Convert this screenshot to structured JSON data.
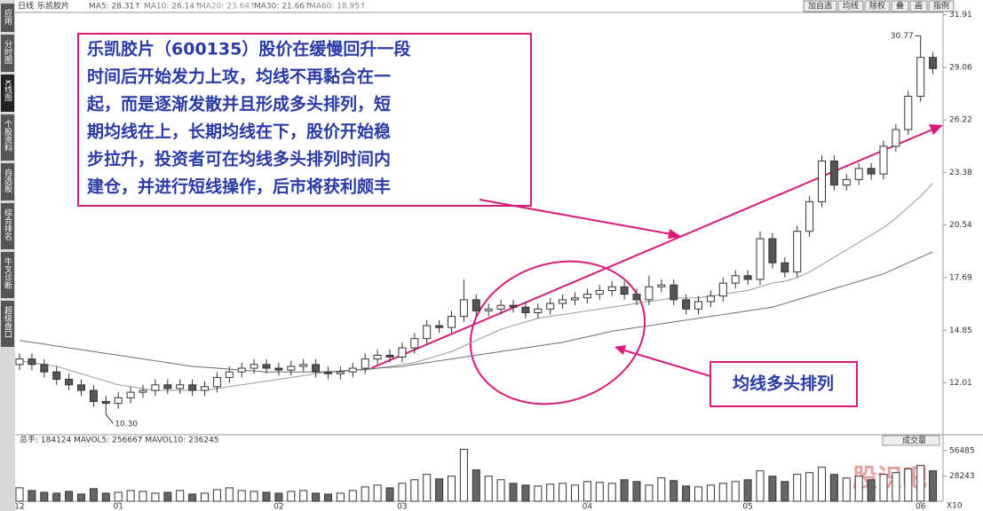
{
  "toolbar": {
    "period": "日线",
    "stock": "乐凯胶片",
    "ma_legend": [
      {
        "text": "MA5: 28.31↑",
        "color": "#555555"
      },
      {
        "text": "MA10: 26.14↑",
        "color": "#777777"
      },
      {
        "text": "MA20: 23.64↑",
        "color": "#999999"
      },
      {
        "text": "MA30: 21.66↑",
        "color": "#666666"
      },
      {
        "text": "MA60: 18.95↑",
        "color": "#888888"
      }
    ],
    "buttons": [
      "加自选",
      "均线",
      "除权",
      "叠",
      "画",
      "指例"
    ],
    "side_tabs": [
      "应用",
      "分时图",
      "K线图",
      "个股资料",
      "自选股",
      "综合排名",
      "牛叉诊断",
      "超级盘口"
    ],
    "volume_header": "总手: 184124   MAVOL5: 256667   MAVOL10: 236245",
    "volume_selector": "成交量",
    "unit": "X10",
    "watermark": "股识吧"
  },
  "annotations": {
    "lines": [
      "乐凯胶片（600135）股价在缓慢回升一段",
      "时间后开始发力上攻，均线不再黏合在一",
      "起，而是逐渐发散并且形成多头排列，短",
      "期均线在上，长期均线在下，股价开始稳",
      "步拉升，投资者可在均线多头排列时间内",
      "建仓，并进行短线操作，后市将获利颇丰"
    ],
    "callout": "均线多头排列"
  },
  "chart_data": [
    {
      "type": "candlestick",
      "categories": [
        "12",
        null,
        null,
        null,
        null,
        null,
        null,
        null,
        "01",
        null,
        null,
        null,
        null,
        null,
        null,
        null,
        null,
        null,
        null,
        null,
        null,
        "02",
        null,
        null,
        null,
        null,
        null,
        null,
        null,
        null,
        null,
        "03",
        null,
        null,
        null,
        null,
        null,
        null,
        null,
        null,
        null,
        null,
        null,
        null,
        null,
        null,
        "04",
        null,
        null,
        null,
        null,
        null,
        null,
        null,
        null,
        null,
        null,
        null,
        null,
        "05",
        null,
        null,
        null,
        null,
        null,
        null,
        null,
        null,
        null,
        null,
        null,
        null,
        null,
        "06",
        null
      ],
      "open": [
        13.0,
        13.3,
        13.0,
        12.6,
        12.2,
        11.9,
        11.6,
        11.0,
        10.9,
        11.2,
        11.5,
        11.6,
        11.9,
        11.7,
        11.9,
        11.6,
        11.8,
        12.3,
        12.6,
        12.8,
        13.0,
        12.8,
        12.7,
        12.9,
        13.0,
        12.6,
        12.5,
        12.6,
        12.8,
        13.3,
        13.5,
        13.4,
        13.9,
        14.4,
        15.1,
        15.0,
        15.6,
        16.5,
        15.9,
        16.0,
        16.2,
        16.1,
        15.8,
        16.0,
        16.3,
        16.5,
        16.6,
        16.8,
        17.0,
        17.2,
        16.8,
        16.5,
        17.2,
        17.3,
        16.5,
        16.0,
        16.4,
        16.7,
        17.4,
        17.8,
        17.6,
        19.8,
        18.5,
        18.0,
        20.2,
        21.8,
        24.0,
        22.7,
        23.0,
        23.6,
        23.3,
        24.8,
        25.7,
        27.5,
        29.6
      ],
      "close": [
        13.3,
        13.0,
        12.6,
        12.2,
        11.9,
        11.6,
        11.0,
        10.9,
        11.2,
        11.5,
        11.6,
        11.9,
        11.7,
        11.9,
        11.6,
        11.8,
        12.3,
        12.6,
        12.8,
        13.0,
        12.8,
        12.7,
        12.9,
        13.0,
        12.6,
        12.5,
        12.6,
        12.8,
        13.3,
        13.5,
        13.4,
        13.9,
        14.4,
        15.1,
        15.0,
        15.6,
        16.5,
        15.9,
        16.0,
        16.2,
        16.1,
        15.8,
        16.0,
        16.3,
        16.5,
        16.6,
        16.8,
        17.0,
        17.2,
        16.8,
        16.5,
        17.2,
        17.3,
        16.5,
        16.0,
        16.4,
        16.7,
        17.4,
        17.8,
        17.6,
        19.8,
        18.5,
        18.0,
        20.2,
        21.8,
        24.0,
        22.7,
        23.0,
        23.6,
        23.3,
        24.8,
        25.7,
        27.5,
        29.6,
        29.0
      ],
      "high": [
        13.6,
        13.6,
        13.3,
        12.9,
        12.5,
        12.2,
        11.9,
        11.3,
        11.5,
        11.8,
        11.9,
        12.2,
        12.2,
        12.2,
        12.2,
        12.1,
        12.6,
        12.9,
        13.1,
        13.3,
        13.3,
        13.1,
        13.2,
        13.3,
        13.3,
        12.9,
        12.9,
        13.1,
        13.6,
        13.8,
        13.8,
        14.2,
        14.7,
        15.4,
        15.4,
        15.9,
        17.6,
        16.8,
        16.3,
        16.5,
        16.5,
        16.4,
        16.3,
        16.6,
        16.8,
        16.9,
        17.1,
        17.3,
        17.5,
        17.5,
        17.1,
        17.8,
        17.6,
        17.6,
        16.8,
        16.7,
        17.0,
        17.7,
        18.1,
        18.1,
        20.2,
        20.1,
        18.8,
        20.5,
        22.1,
        24.3,
        24.3,
        23.3,
        23.9,
        23.9,
        25.1,
        26.0,
        27.8,
        30.77,
        29.9
      ],
      "low": [
        12.7,
        12.7,
        12.3,
        11.9,
        11.6,
        11.3,
        10.7,
        10.3,
        10.6,
        10.9,
        11.2,
        11.3,
        11.4,
        11.4,
        11.3,
        11.3,
        11.5,
        12.0,
        12.3,
        12.5,
        12.5,
        12.4,
        12.4,
        12.6,
        12.3,
        12.2,
        12.2,
        12.3,
        12.5,
        13.0,
        13.1,
        13.1,
        13.6,
        14.1,
        14.7,
        14.7,
        15.3,
        15.6,
        15.6,
        15.7,
        15.8,
        15.5,
        15.5,
        15.7,
        16.0,
        16.2,
        16.3,
        16.5,
        16.7,
        16.5,
        16.2,
        16.2,
        16.9,
        16.2,
        15.7,
        15.7,
        16.1,
        16.4,
        17.1,
        17.3,
        17.3,
        18.2,
        17.7,
        17.7,
        19.9,
        21.5,
        22.4,
        22.4,
        22.7,
        23.0,
        23.0,
        24.5,
        25.4,
        27.2,
        28.7
      ],
      "high_label": "30.77",
      "low_label": "10.30",
      "series": [
        {
          "color": "#9a9a9a",
          "values": [
            13.2,
            13.1,
            13.0,
            12.9,
            12.7,
            12.5,
            12.3,
            12.1,
            11.9,
            11.8,
            11.7,
            11.6,
            11.6,
            11.6,
            11.6,
            11.6,
            11.7,
            11.8,
            11.9,
            12.0,
            12.1,
            12.2,
            12.3,
            12.4,
            12.5,
            12.6,
            12.6,
            12.7,
            12.7,
            12.8,
            12.9,
            13.0,
            13.1,
            13.3,
            13.5,
            13.7,
            14.0,
            14.3,
            14.6,
            14.9,
            15.1,
            15.3,
            15.5,
            15.6,
            15.7,
            15.8,
            15.9,
            16.0,
            16.1,
            16.2,
            16.3,
            16.4,
            16.5,
            16.6,
            16.6,
            16.6,
            16.7,
            16.8,
            16.9,
            17.0,
            17.2,
            17.4,
            17.5,
            17.7,
            18.0,
            18.4,
            18.8,
            19.2,
            19.6,
            20.0,
            20.4,
            20.9,
            21.5,
            22.1,
            22.8
          ]
        },
        {
          "color": "#6a6a6a",
          "values": [
            14.3,
            14.2,
            14.1,
            14.0,
            13.9,
            13.8,
            13.7,
            13.6,
            13.5,
            13.4,
            13.3,
            13.2,
            13.1,
            13.0,
            12.9,
            12.85,
            12.8,
            12.75,
            12.7,
            12.65,
            12.6,
            12.6,
            12.6,
            12.6,
            12.6,
            12.6,
            12.65,
            12.7,
            12.75,
            12.8,
            12.85,
            12.9,
            13.0,
            13.1,
            13.2,
            13.3,
            13.4,
            13.5,
            13.6,
            13.7,
            13.8,
            13.9,
            14.0,
            14.1,
            14.2,
            14.35,
            14.5,
            14.65,
            14.8,
            14.9,
            15.0,
            15.1,
            15.2,
            15.3,
            15.4,
            15.5,
            15.6,
            15.7,
            15.8,
            15.9,
            16.0,
            16.1,
            16.3,
            16.5,
            16.7,
            16.9,
            17.1,
            17.3,
            17.5,
            17.7,
            17.9,
            18.2,
            18.5,
            18.8,
            19.1
          ]
        }
      ],
      "ylim": [
        9.3,
        32.13
      ],
      "yticks": [
        12.01,
        14.85,
        17.69,
        20.54,
        23.38,
        26.22,
        29.06,
        31.91
      ],
      "grid": false,
      "up_color": "#ffffff",
      "down_color": "#555555",
      "edge_color": "#333333"
    },
    {
      "type": "bar",
      "values": [
        15000,
        12000,
        10000,
        9000,
        11000,
        8000,
        14000,
        9000,
        10000,
        12000,
        11000,
        9000,
        10000,
        12000,
        8000,
        9000,
        13000,
        15000,
        12000,
        11000,
        10000,
        9000,
        11000,
        12000,
        9000,
        8000,
        9000,
        12000,
        16000,
        18000,
        15000,
        20000,
        24000,
        30000,
        25000,
        28000,
        58000,
        35000,
        28000,
        24000,
        20000,
        18000,
        17000,
        19000,
        20000,
        18000,
        22000,
        21000,
        20000,
        24000,
        22000,
        18000,
        26000,
        23000,
        17000,
        16000,
        18000,
        20000,
        22000,
        24000,
        34000,
        28000,
        22000,
        30000,
        32000,
        38000,
        30000,
        26000,
        28000,
        24000,
        30000,
        32000,
        36000,
        40000,
        34000
      ],
      "ylim": [
        0,
        64400
      ],
      "yticks": [
        28243,
        56485
      ],
      "color": "#666666"
    }
  ]
}
